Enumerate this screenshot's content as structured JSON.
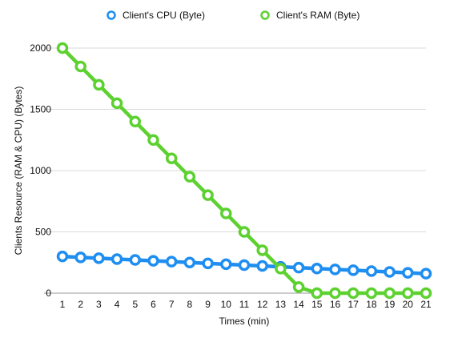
{
  "chart_data": {
    "type": "line",
    "xlabel": "Times (min)",
    "ylabel": "Clients Resource (RAM & CPU) (Bytes)",
    "ylim": [
      0,
      2000
    ],
    "yticks": [
      0,
      500,
      1000,
      1500,
      2000
    ],
    "x": [
      1,
      2,
      3,
      4,
      5,
      6,
      7,
      8,
      9,
      10,
      11,
      12,
      13,
      14,
      15,
      16,
      17,
      18,
      19,
      20,
      21
    ],
    "grid": true,
    "legend_position": "top",
    "series": [
      {
        "name": "Client's CPU (Byte)",
        "color": "#1e8ef0",
        "values": [
          300,
          292,
          285,
          278,
          271,
          264,
          257,
          250,
          243,
          236,
          229,
          222,
          215,
          208,
          201,
          194,
          187,
          180,
          173,
          166,
          159
        ]
      },
      {
        "name": "Client's RAM (Byte)",
        "color": "#5cd130",
        "values": [
          2000,
          1850,
          1700,
          1550,
          1400,
          1250,
          1100,
          950,
          800,
          650,
          500,
          350,
          200,
          50,
          0,
          0,
          0,
          0,
          0,
          0,
          0
        ]
      }
    ]
  }
}
